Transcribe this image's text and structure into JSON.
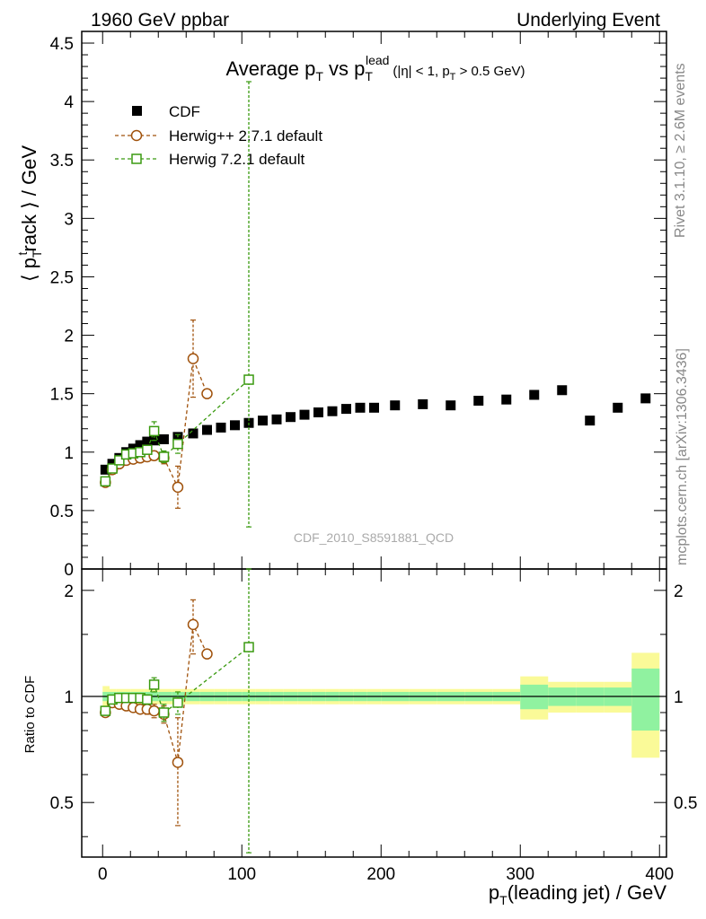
{
  "header": {
    "left": "1960 GeV ppbar",
    "right": "Underlying Event"
  },
  "side_labels": {
    "rivet": "Rivet 3.1.10, ≥ 2.6M events",
    "mcplots": "mcplots.cern.ch [arXiv:1306.3436]"
  },
  "watermark": "CDF_2010_S8591881_QCD",
  "colors": {
    "cdf": "#000000",
    "herwigpp": "#a0520c",
    "herwig7": "#3a9a10",
    "band_inner": "#90f2a0",
    "band_outer": "#fafa98"
  },
  "chart_data": [
    {
      "type": "scatter",
      "panel": "main",
      "title": {
        "average": "Average p",
        "sub_t": "T",
        "vs": " vs p",
        "sub_t2": "T",
        "sup": "lead",
        "cuts_a": "(|η| < 1, p",
        "cuts_sub": "T",
        "cuts_b": " > 0.5 GeV)"
      },
      "ylabel": {
        "open": "⟨ p",
        "sub": "T",
        "sup": "t",
        "rest": "rack ⟩ / GeV"
      },
      "xlim": [
        -15,
        405
      ],
      "ylim": [
        0,
        4.6
      ],
      "yticks": [
        "0",
        "0.5",
        "1",
        "1.5",
        "2",
        "2.5",
        "3",
        "3.5",
        "4",
        "4.5"
      ],
      "legend": [
        {
          "label": "CDF",
          "style": "filled-square"
        },
        {
          "label": "Herwig++ 2.7.1 default",
          "style": "open-circle-dashed"
        },
        {
          "label": "Herwig 7.2.1 default",
          "style": "open-square-dashed"
        }
      ],
      "series": [
        {
          "name": "CDF",
          "x": [
            2,
            7,
            12,
            17,
            22,
            27,
            32,
            37,
            44,
            54,
            65,
            75,
            85,
            95,
            105,
            115,
            125,
            135,
            145,
            155,
            165,
            175,
            185,
            195,
            210,
            230,
            250,
            270,
            290,
            310,
            330,
            350,
            370,
            390
          ],
          "y": [
            0.85,
            0.9,
            0.95,
            1.0,
            1.03,
            1.06,
            1.09,
            1.1,
            1.11,
            1.13,
            1.16,
            1.19,
            1.21,
            1.23,
            1.25,
            1.27,
            1.28,
            1.3,
            1.32,
            1.34,
            1.35,
            1.37,
            1.38,
            1.38,
            1.4,
            1.41,
            1.4,
            1.44,
            1.45,
            1.49,
            1.53,
            1.27,
            1.38,
            1.46
          ]
        },
        {
          "name": "Herwig++ 2.7.1 default",
          "x": [
            2,
            7,
            12,
            17,
            22,
            27,
            32,
            37,
            44,
            54,
            65,
            75
          ],
          "y": [
            0.74,
            0.85,
            0.9,
            0.93,
            0.94,
            0.95,
            0.96,
            0.97,
            0.95,
            0.7,
            1.8,
            1.5
          ],
          "err": [
            0.02,
            0.02,
            0.02,
            0.02,
            0.02,
            0.02,
            0.03,
            0.04,
            0.05,
            0.18,
            0.33,
            0.0
          ]
        },
        {
          "name": "Herwig 7.2.1 default",
          "x": [
            2,
            7,
            12,
            17,
            22,
            27,
            32,
            37,
            44,
            54,
            105
          ],
          "y": [
            0.75,
            0.86,
            0.93,
            0.98,
            0.99,
            1.0,
            1.02,
            1.18,
            0.96,
            1.07,
            1.62
          ],
          "err": [
            0.02,
            0.02,
            0.02,
            0.02,
            0.02,
            0.02,
            0.03,
            0.08,
            0.05,
            0.08,
            2.55
          ]
        }
      ]
    },
    {
      "type": "scatter",
      "panel": "ratio",
      "ylabel": "Ratio to CDF",
      "xlabel": {
        "main": "p",
        "sub": "T",
        "rest": "(leading jet) / GeV"
      },
      "xlim": [
        -15,
        405
      ],
      "ylim": [
        0.35,
        2.3
      ],
      "xticks": [
        "0",
        "100",
        "200",
        "300",
        "400"
      ],
      "yticks": [
        "0.5",
        "1",
        "2"
      ],
      "bands": {
        "edges": [
          0,
          5,
          10,
          15,
          20,
          25,
          30,
          35,
          40,
          50,
          60,
          70,
          80,
          90,
          100,
          110,
          120,
          130,
          140,
          150,
          160,
          170,
          180,
          190,
          200,
          220,
          240,
          260,
          280,
          300,
          320,
          340,
          360,
          380,
          400
        ],
        "inner": [
          0.03,
          0.03,
          0.03,
          0.03,
          0.03,
          0.03,
          0.03,
          0.03,
          0.03,
          0.03,
          0.03,
          0.03,
          0.03,
          0.03,
          0.03,
          0.03,
          0.03,
          0.03,
          0.03,
          0.03,
          0.03,
          0.03,
          0.03,
          0.03,
          0.03,
          0.03,
          0.03,
          0.03,
          0.03,
          0.08,
          0.06,
          0.06,
          0.06,
          0.2
        ],
        "outer": [
          0.07,
          0.05,
          0.05,
          0.05,
          0.05,
          0.05,
          0.05,
          0.05,
          0.05,
          0.05,
          0.05,
          0.05,
          0.05,
          0.05,
          0.05,
          0.05,
          0.05,
          0.05,
          0.05,
          0.05,
          0.05,
          0.05,
          0.05,
          0.05,
          0.05,
          0.05,
          0.05,
          0.05,
          0.05,
          0.14,
          0.1,
          0.1,
          0.1,
          0.33
        ]
      },
      "series": [
        {
          "name": "Herwig++ 2.7.1 default",
          "x": [
            2,
            7,
            12,
            17,
            22,
            27,
            32,
            37,
            44,
            54,
            65,
            75
          ],
          "y": [
            0.9,
            0.96,
            0.95,
            0.94,
            0.93,
            0.92,
            0.92,
            0.91,
            0.89,
            0.65,
            1.6,
            1.32
          ],
          "err": [
            0.02,
            0.02,
            0.02,
            0.02,
            0.02,
            0.02,
            0.03,
            0.04,
            0.05,
            0.22,
            0.28,
            0.0
          ]
        },
        {
          "name": "Herwig 7.2.1 default",
          "x": [
            2,
            7,
            12,
            17,
            22,
            27,
            32,
            37,
            44,
            54,
            105
          ],
          "y": [
            0.91,
            0.98,
            0.99,
            0.99,
            0.99,
            0.99,
            0.98,
            1.08,
            0.9,
            0.96,
            1.38
          ],
          "err": [
            0.02,
            0.02,
            0.02,
            0.02,
            0.02,
            0.02,
            0.03,
            0.05,
            0.05,
            0.07,
            3.0
          ]
        }
      ]
    }
  ]
}
